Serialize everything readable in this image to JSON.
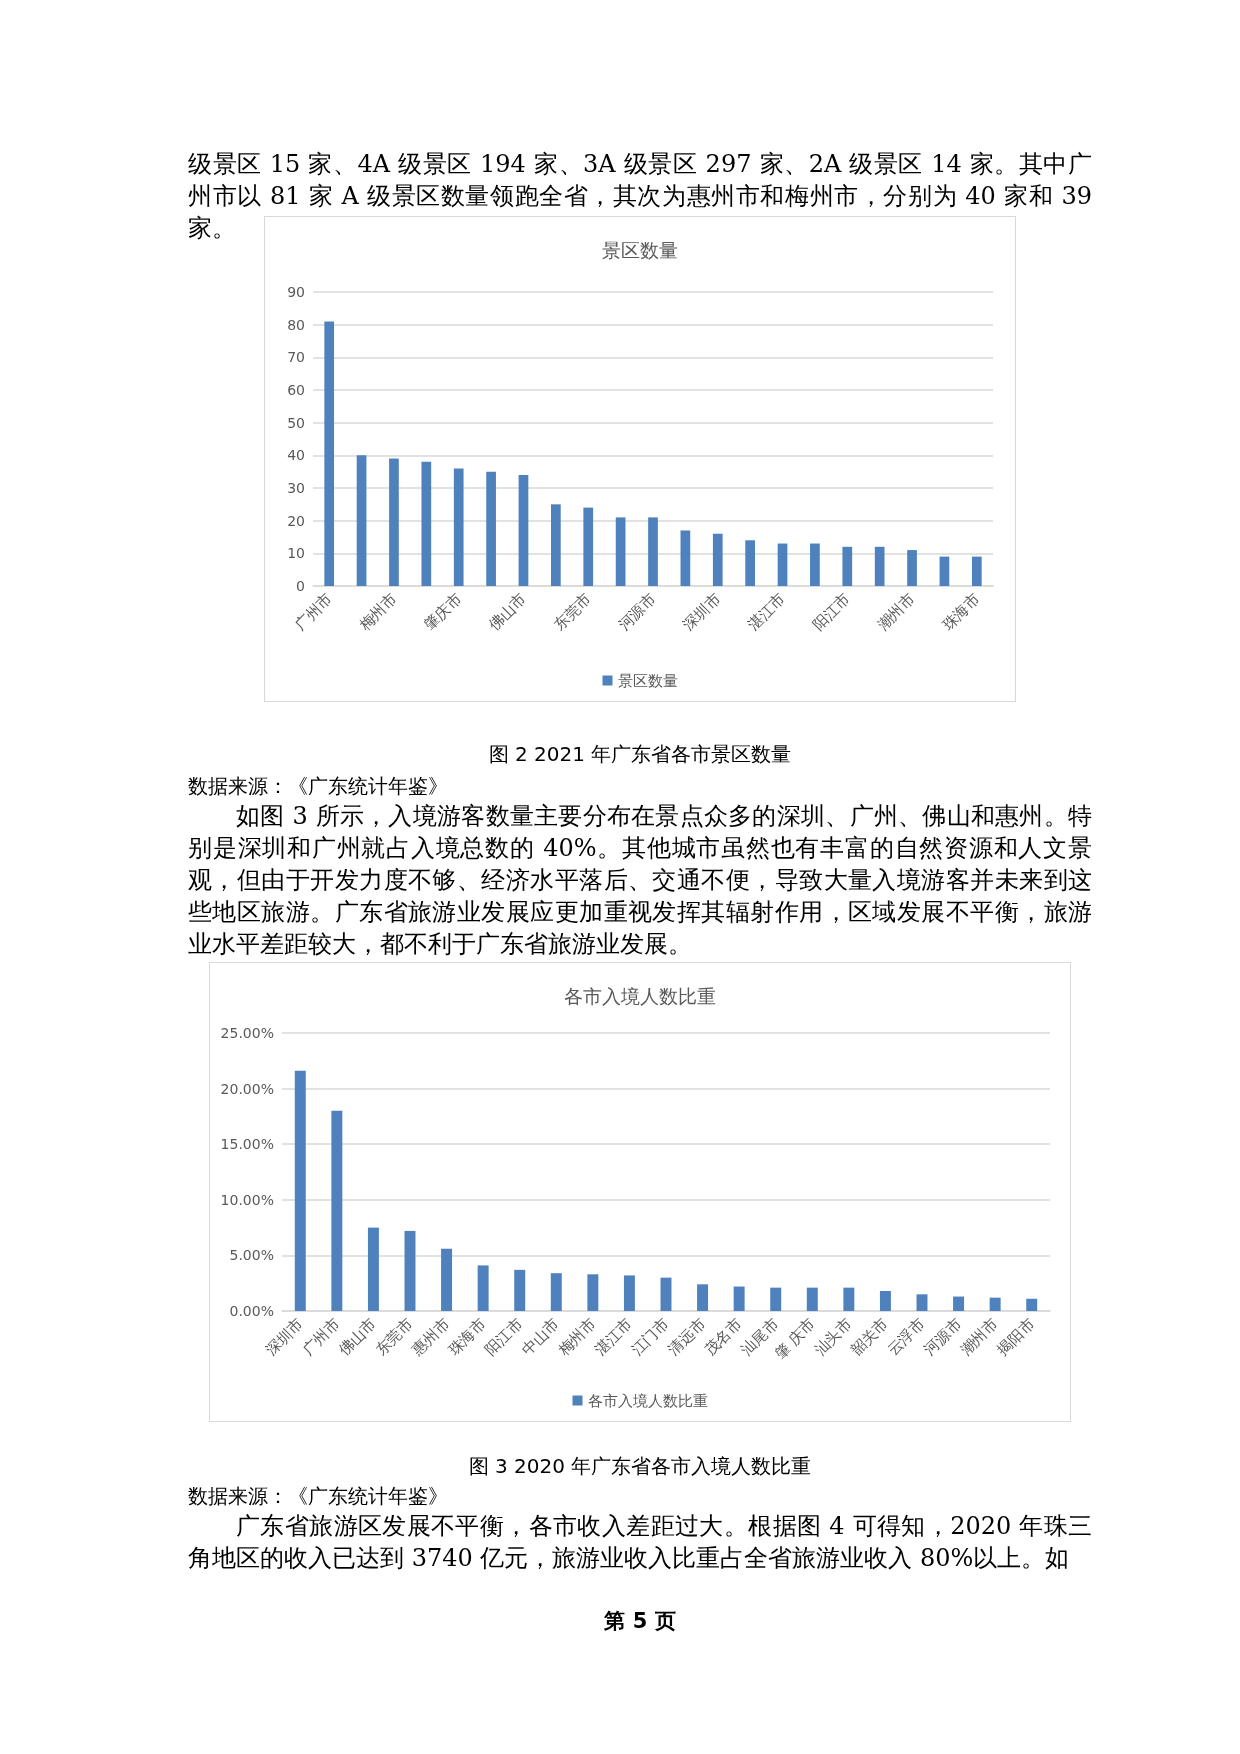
{
  "chart_data": [
    {
      "type": "bar",
      "title": "景区数量",
      "categories": [
        "广州市",
        null,
        "梅州市",
        null,
        "肇庆市",
        null,
        "佛山市",
        null,
        "东莞市",
        null,
        "河源市",
        null,
        "深圳市",
        null,
        "湛江市",
        null,
        "阳江市",
        null,
        "潮州市",
        null,
        "珠海市"
      ],
      "series": [
        {
          "name": "景区数量",
          "color": "#4f81bd",
          "values": [
            81,
            40,
            39,
            38,
            36,
            35,
            34,
            25,
            24,
            21,
            21,
            17,
            16,
            14,
            13,
            13,
            12,
            12,
            11,
            9,
            9
          ]
        }
      ],
      "ylim": [
        0,
        90
      ],
      "yticks": [
        0,
        10,
        20,
        30,
        40,
        50,
        60,
        70,
        80,
        90
      ],
      "grid": "y",
      "legend": "bottom",
      "annotations": [
        "级景区 15 家、4A 级景区 194 家、3A 级景区 297 家、2A 级景区  14 家。其中广州市以 81 家 A 级景区数量领跑全省，其次为惠州市和梅州市，分别为 40 家和 39 家。",
        "图 2  2021 年广东省各市景区数量",
        "数据来源：《广东统计年鉴》",
        "如图 3 所示，入境游客数量主要分布在景点众多的深圳、广州、佛山和惠州。特别是深圳和广州就占入境总数的 40%。其他城市虽然也有丰富的自然资源和人文景观，但由于开发力度不够、经济水平落后、交通不便，导致大量入境游客并未来到这些地区旅游。广东省旅游业发展应更加重视发挥其辐射作用，区域发展不平衡，旅游业水平差距较大，都不利于广东省旅游业发展。"
      ]
    },
    {
      "type": "bar",
      "title": "各市入境人数比重",
      "categories": [
        "深圳市",
        "广州市",
        "佛山市",
        "东莞市",
        "惠州市",
        "珠海市",
        "阳江市",
        "中山市",
        "梅州市",
        "湛江市",
        "江门市",
        "清远市",
        "茂名市",
        "汕尾市",
        "肇 庆市",
        "汕头市",
        "韶关市",
        "云浮市",
        "河源市",
        "潮州市",
        "揭阳市"
      ],
      "series": [
        {
          "name": "各市入境人数比重",
          "color": "#4f81bd",
          "values": [
            21.6,
            18.0,
            7.5,
            7.2,
            5.6,
            4.1,
            3.7,
            3.4,
            3.3,
            3.2,
            3.0,
            2.4,
            2.2,
            2.1,
            2.1,
            2.1,
            1.8,
            1.5,
            1.3,
            1.2,
            1.1
          ]
        }
      ],
      "ylim": [
        0,
        25
      ],
      "yticks": [
        {
          "value": 0,
          "label": "0.00%"
        },
        {
          "value": 5,
          "label": "5.00%"
        },
        {
          "value": 10,
          "label": "10.00%"
        },
        {
          "value": 15,
          "label": "15.00%"
        },
        {
          "value": 20,
          "label": "20.00%"
        },
        {
          "value": 25,
          "label": "25.00%"
        }
      ],
      "grid": "y",
      "legend": "bottom",
      "annotations": [
        "图 3  2020 年广东省各市入境人数比重",
        "数据来源：《广东统计年鉴》",
        "广东省旅游区发展不平衡，各市收入差距过大。根据图 4 可得知，2020 年珠三角地区的收入已达到 3740 亿元，旅游业收入比重占全省旅游业收入 80%以上。如",
        "第 5 页"
      ]
    }
  ]
}
